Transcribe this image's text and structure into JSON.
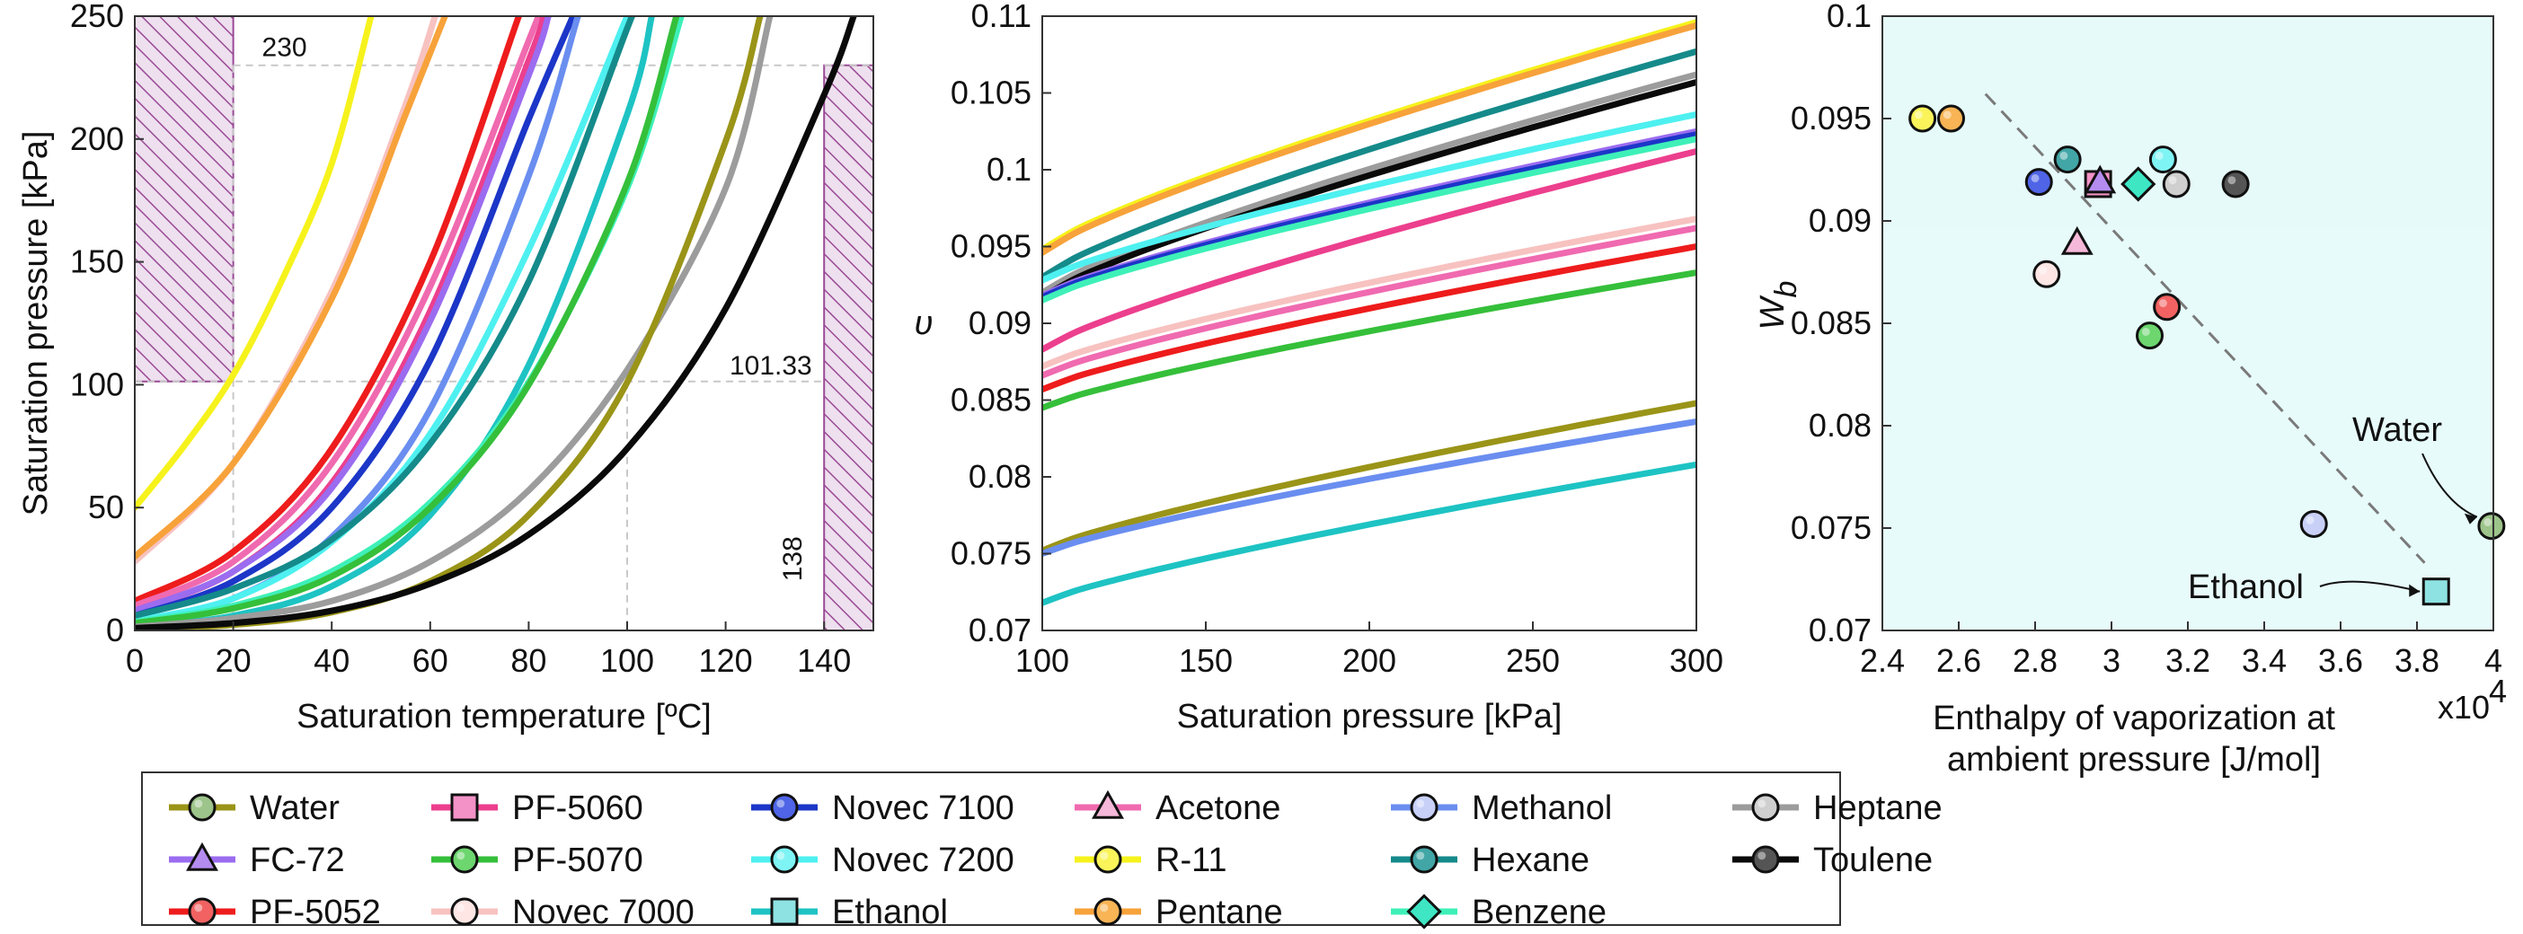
{
  "legend": {
    "entries": [
      {
        "name": "Water",
        "color": "#9a9418",
        "marker": "circle",
        "fill": "#9dc48a"
      },
      {
        "name": "FC-72",
        "color": "#9b6cf0",
        "marker": "triangle",
        "fill": "#b48cf0"
      },
      {
        "name": "PF-5052",
        "color": "#ee1c1c",
        "marker": "circle",
        "fill": "#f26262"
      },
      {
        "name": "PF-5060",
        "color": "#ec3f8e",
        "marker": "square",
        "fill": "#f392c6"
      },
      {
        "name": "PF-5070",
        "color": "#35bf3a",
        "marker": "circle",
        "fill": "#6dd66f"
      },
      {
        "name": "Novec 7000",
        "color": "#f7c2c0",
        "marker": "circle",
        "fill": "#fde6e4"
      },
      {
        "name": "Novec 7100",
        "color": "#1c36c8",
        "marker": "circle",
        "fill": "#4f64e6"
      },
      {
        "name": "Novec 7200",
        "color": "#4ef0f0",
        "marker": "circle",
        "fill": "#7ff4f4"
      },
      {
        "name": "Ethanol",
        "color": "#1ec3c3",
        "marker": "square",
        "fill": "#8ee2e2"
      },
      {
        "name": "Acetone",
        "color": "#f06ab0",
        "marker": "triangle",
        "fill": "#f6b8d8"
      },
      {
        "name": "R-11",
        "color": "#f6f21c",
        "marker": "circle",
        "fill": "#faf45a"
      },
      {
        "name": "Pentane",
        "color": "#f7a23a",
        "marker": "circle",
        "fill": "#f8b455"
      },
      {
        "name": "Methanol",
        "color": "#6a8ef0",
        "marker": "circle",
        "fill": "#c8d0f8"
      },
      {
        "name": "Hexane",
        "color": "#158a8a",
        "marker": "circle",
        "fill": "#42a6a6"
      },
      {
        "name": "Benzene",
        "color": "#3ef0b8",
        "marker": "diamond",
        "fill": "#3ee6c4"
      },
      {
        "name": "Heptane",
        "color": "#9c9c9c",
        "marker": "circle",
        "fill": "#cfcfcf"
      },
      {
        "name": "Toulene",
        "color": "#0a0a0a",
        "marker": "circle",
        "fill": "#555555"
      }
    ]
  },
  "chart_data": [
    {
      "type": "line",
      "xlabel": "Saturation temperature [ºC]",
      "ylabel": "Saturation pressure [kPa]",
      "xlim": [
        0,
        150
      ],
      "ylim": [
        0,
        250
      ],
      "xticks": [
        "0",
        "20",
        "40",
        "60",
        "80",
        "100",
        "120",
        "140"
      ],
      "yticks": [
        "0",
        "50",
        "100",
        "150",
        "200",
        "250"
      ],
      "annotations": [
        {
          "text": "230",
          "x": 24,
          "y": 230
        },
        {
          "text": "101.33",
          "x": 131,
          "y": 101.33
        },
        {
          "text": "138",
          "x": 138,
          "y": 20
        }
      ],
      "hatched_regions": [
        [
          0,
          20
        ],
        [
          140,
          150
        ]
      ],
      "reference_lines": {
        "y": [
          101.33,
          230
        ],
        "x": [
          20,
          100
        ]
      },
      "series": [
        {
          "name": "R-11",
          "points": [
            [
              0,
              50
            ],
            [
              10,
              75
            ],
            [
              20,
              104
            ],
            [
              30,
              143
            ],
            [
              40,
              190
            ],
            [
              48,
              250
            ]
          ]
        },
        {
          "name": "Novec 7000",
          "points": [
            [
              0,
              28
            ],
            [
              20,
              68
            ],
            [
              40,
              138
            ],
            [
              55,
              214
            ],
            [
              61,
              250
            ]
          ]
        },
        {
          "name": "Pentane",
          "points": [
            [
              0,
              30
            ],
            [
              20,
              68
            ],
            [
              40,
              135
            ],
            [
              55,
              210
            ],
            [
              63,
              250
            ]
          ]
        },
        {
          "name": "PF-5052",
          "points": [
            [
              0,
              12
            ],
            [
              20,
              32
            ],
            [
              40,
              74
            ],
            [
              60,
              150
            ],
            [
              78,
              250
            ]
          ]
        },
        {
          "name": "Acetone",
          "points": [
            [
              0,
              10
            ],
            [
              20,
              28
            ],
            [
              40,
              68
            ],
            [
              60,
              140
            ],
            [
              80,
              240
            ],
            [
              82,
              250
            ]
          ]
        },
        {
          "name": "PF-5060",
          "points": [
            [
              0,
              8
            ],
            [
              20,
              24
            ],
            [
              40,
              60
            ],
            [
              60,
              130
            ],
            [
              80,
              232
            ],
            [
              83,
              250
            ]
          ]
        },
        {
          "name": "FC-72",
          "points": [
            [
              0,
              8
            ],
            [
              20,
              24
            ],
            [
              40,
              58
            ],
            [
              60,
              126
            ],
            [
              80,
              226
            ],
            [
              84,
              250
            ]
          ]
        },
        {
          "name": "Novec 7100",
          "points": [
            [
              0,
              6
            ],
            [
              20,
              20
            ],
            [
              40,
              50
            ],
            [
              60,
              110
            ],
            [
              80,
              208
            ],
            [
              89,
              250
            ]
          ]
        },
        {
          "name": "Methanol",
          "points": [
            [
              0,
              4
            ],
            [
              20,
              13
            ],
            [
              40,
              38
            ],
            [
              60,
              90
            ],
            [
              80,
              185
            ],
            [
              90,
              250
            ]
          ]
        },
        {
          "name": "Novec 7200",
          "points": [
            [
              0,
              4
            ],
            [
              20,
              13
            ],
            [
              40,
              36
            ],
            [
              60,
              80
            ],
            [
              80,
              155
            ],
            [
              100,
              250
            ]
          ]
        },
        {
          "name": "Ethanol",
          "points": [
            [
              0,
              1.6
            ],
            [
              20,
              6
            ],
            [
              40,
              18
            ],
            [
              60,
              47
            ],
            [
              80,
              108
            ],
            [
              100,
              210
            ],
            [
              105,
              250
            ]
          ]
        },
        {
          "name": "Hexane",
          "points": [
            [
              0,
              6
            ],
            [
              20,
              17
            ],
            [
              40,
              37
            ],
            [
              60,
              76
            ],
            [
              80,
              142
            ],
            [
              100,
              245
            ],
            [
              101,
              250
            ]
          ]
        },
        {
          "name": "Benzene",
          "points": [
            [
              0,
              3.5
            ],
            [
              20,
              10
            ],
            [
              40,
              24
            ],
            [
              60,
              52
            ],
            [
              80,
              101
            ],
            [
              100,
              180
            ],
            [
              111,
              250
            ]
          ]
        },
        {
          "name": "PF-5070",
          "points": [
            [
              0,
              3
            ],
            [
              20,
              9
            ],
            [
              40,
              22
            ],
            [
              60,
              50
            ],
            [
              80,
              100
            ],
            [
              100,
              182
            ],
            [
              110,
              250
            ]
          ]
        },
        {
          "name": "Heptane",
          "points": [
            [
              0,
              1.5
            ],
            [
              20,
              5
            ],
            [
              40,
              12
            ],
            [
              60,
              28
            ],
            [
              80,
              57
            ],
            [
              100,
              106
            ],
            [
              120,
              180
            ],
            [
              129,
              250
            ]
          ]
        },
        {
          "name": "Water",
          "points": [
            [
              0,
              0.6
            ],
            [
              20,
              2.3
            ],
            [
              40,
              7.4
            ],
            [
              60,
              20
            ],
            [
              80,
              47
            ],
            [
              100,
              101
            ],
            [
              120,
              199
            ],
            [
              127,
              250
            ]
          ]
        },
        {
          "name": "Toulene",
          "points": [
            [
              0,
              1
            ],
            [
              20,
              3
            ],
            [
              40,
              8
            ],
            [
              60,
              19
            ],
            [
              80,
              39
            ],
            [
              100,
              74
            ],
            [
              120,
              131
            ],
            [
              140,
              218
            ],
            [
              146,
              250
            ]
          ]
        }
      ]
    },
    {
      "type": "line",
      "xlabel": "Saturation pressure [kPa]",
      "ylabel": "υ",
      "xlim": [
        100,
        300
      ],
      "ylim": [
        0.07,
        0.11
      ],
      "xticks": [
        "100",
        "150",
        "200",
        "250",
        "300"
      ],
      "yticks": [
        "0.07",
        "0.075",
        "0.08",
        "0.085",
        "0.09",
        "0.095",
        "0.1",
        "0.105",
        "0.11"
      ],
      "series": [
        {
          "name": "R-11",
          "start": 0.0948,
          "end": 0.1096
        },
        {
          "name": "Pentane",
          "start": 0.0946,
          "end": 0.1094
        },
        {
          "name": "Hexane",
          "start": 0.093,
          "end": 0.1077
        },
        {
          "name": "Heptane",
          "start": 0.092,
          "end": 0.1062
        },
        {
          "name": "Toulene",
          "start": 0.0917,
          "end": 0.1057
        },
        {
          "name": "Novec 7200",
          "start": 0.0928,
          "end": 0.1036
        },
        {
          "name": "FC-72",
          "start": 0.0918,
          "end": 0.1025
        },
        {
          "name": "Novec 7100",
          "start": 0.0917,
          "end": 0.1023
        },
        {
          "name": "Benzene",
          "start": 0.0915,
          "end": 0.102
        },
        {
          "name": "PF-5060",
          "start": 0.0883,
          "end": 0.1012
        },
        {
          "name": "Novec 7000",
          "start": 0.0872,
          "end": 0.0968
        },
        {
          "name": "Acetone",
          "start": 0.0866,
          "end": 0.0962
        },
        {
          "name": "PF-5052",
          "start": 0.0857,
          "end": 0.095
        },
        {
          "name": "PF-5070",
          "start": 0.0845,
          "end": 0.0933
        },
        {
          "name": "Water",
          "start": 0.0752,
          "end": 0.0848
        },
        {
          "name": "Methanol",
          "start": 0.075,
          "end": 0.0836
        },
        {
          "name": "Ethanol",
          "start": 0.0718,
          "end": 0.0808
        }
      ]
    },
    {
      "type": "scatter",
      "xlabel": "Enthalpy of vaporization at ambient pressure [J/mol]",
      "ylabel": "W_b",
      "xlim": [
        24000,
        40000
      ],
      "ylim": [
        0.07,
        0.1
      ],
      "xticks": [
        "2.4",
        "2.6",
        "2.8",
        "3",
        "3.2",
        "3.4",
        "3.6",
        "3.8",
        "4"
      ],
      "yticks": [
        "0.07",
        "0.075",
        "0.08",
        "0.085",
        "0.09",
        "0.095",
        "0.1"
      ],
      "x_multiplier": "x10",
      "x_multiplier_exp": "4",
      "annotations": [
        {
          "text": "Water",
          "target": "Water"
        },
        {
          "text": "Ethanol",
          "target": "Ethanol"
        }
      ],
      "trend_line": [
        [
          26700,
          0.0962
        ],
        [
          38200,
          0.0733
        ]
      ],
      "points": [
        {
          "name": "R-11",
          "x": 25050,
          "y": 0.095
        },
        {
          "name": "Pentane",
          "x": 25800,
          "y": 0.095
        },
        {
          "name": "Novec 7100",
          "x": 28100,
          "y": 0.0919
        },
        {
          "name": "Hexane",
          "x": 28850,
          "y": 0.093
        },
        {
          "name": "PF-5060",
          "x": 29650,
          "y": 0.0918
        },
        {
          "name": "FC-72",
          "x": 29700,
          "y": 0.0919
        },
        {
          "name": "Benzene",
          "x": 30700,
          "y": 0.0918
        },
        {
          "name": "Novec 7200",
          "x": 31350,
          "y": 0.093
        },
        {
          "name": "Heptane",
          "x": 31700,
          "y": 0.0918
        },
        {
          "name": "Toulene",
          "x": 33250,
          "y": 0.0918
        },
        {
          "name": "Acetone",
          "x": 29100,
          "y": 0.0889
        },
        {
          "name": "Novec 7000",
          "x": 28300,
          "y": 0.0874
        },
        {
          "name": "PF-5052",
          "x": 31450,
          "y": 0.0858
        },
        {
          "name": "PF-5070",
          "x": 31000,
          "y": 0.0844
        },
        {
          "name": "Methanol",
          "x": 35300,
          "y": 0.0752
        },
        {
          "name": "Water",
          "x": 39950,
          "y": 0.0751
        },
        {
          "name": "Ethanol",
          "x": 38500,
          "y": 0.0719
        }
      ]
    }
  ]
}
